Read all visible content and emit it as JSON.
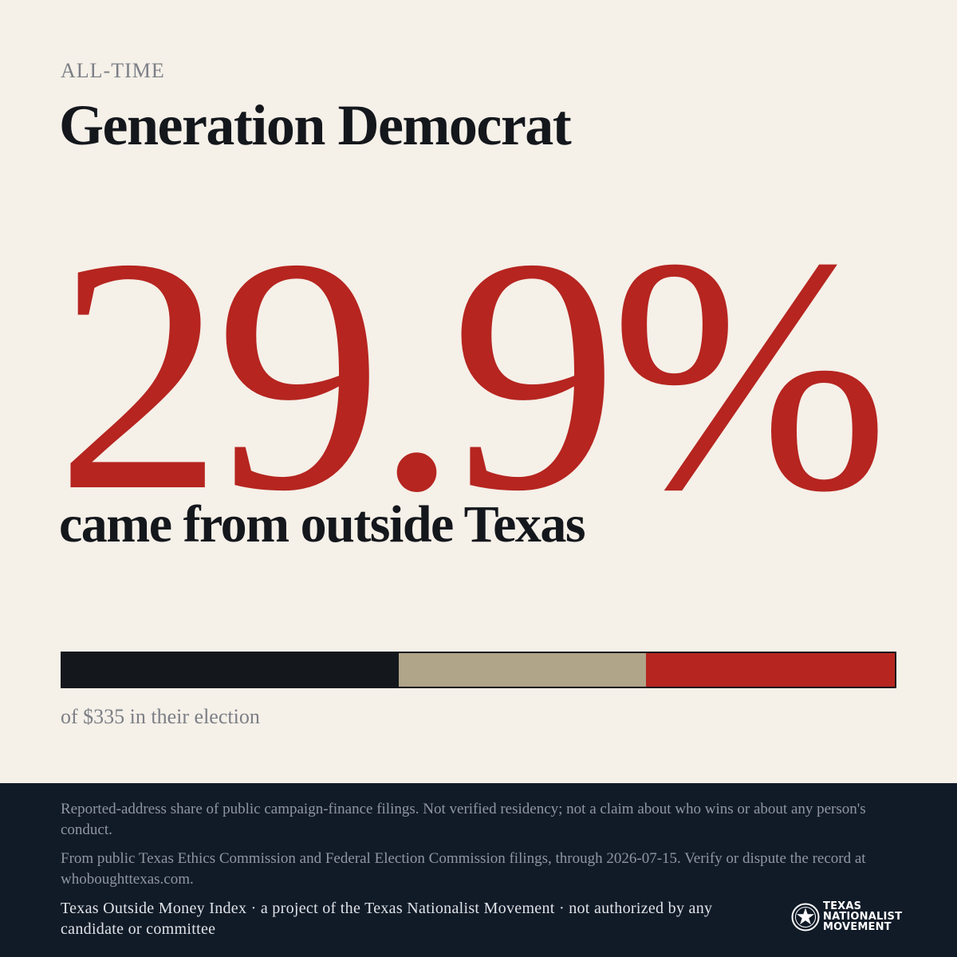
{
  "eyebrow": "ALL-TIME",
  "subject": "Generation Democrat",
  "headline_value": "29.9%",
  "headline_caption": "came from outside Texas",
  "share_bar": {
    "segments": [
      {
        "fraction": 0.404,
        "color": "#14171c"
      },
      {
        "fraction": 0.297,
        "color": "#b0a489"
      },
      {
        "fraction": 0.299,
        "color": "#b62520"
      }
    ]
  },
  "total_text": "of $335 in their election",
  "footer": {
    "note1": "Reported-address share of public campaign-finance filings. Not verified residency; not a claim about who wins or about any person's conduct.",
    "note2": "From public Texas Ethics Commission and Federal Election Commission filings, through 2026-07-15. Verify or dispute the record at whoboughttexas.com.",
    "credit": "Texas Outside Money Index · a project of the Texas Nationalist Movement · not authorized by any candidate or committee",
    "brand": {
      "line1": "TEXAS",
      "line2": "NATIONALIST",
      "line3": "MOVEMENT",
      "icon": "star-seal-icon"
    }
  },
  "colors": {
    "background": "#f5f0e8",
    "accent": "#b62520",
    "ink": "#14171c",
    "footer": "#111b28"
  }
}
